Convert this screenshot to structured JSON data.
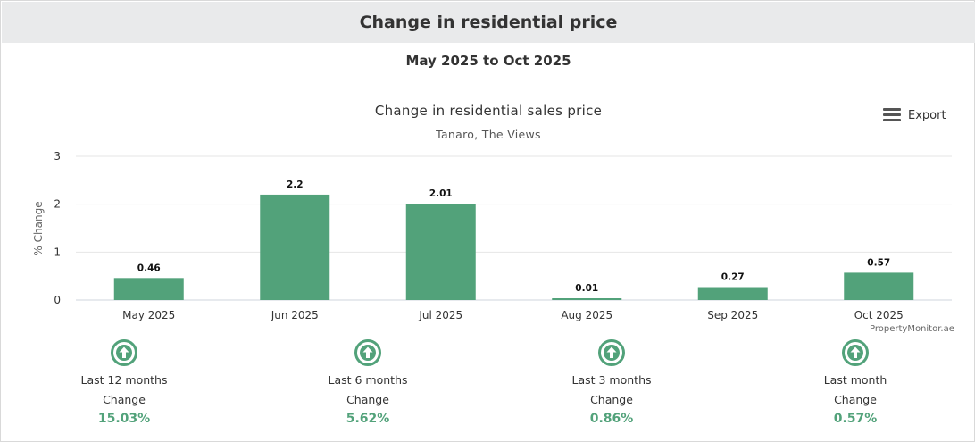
{
  "header": {
    "title": "Change in residential price"
  },
  "period": "May 2025 to Oct 2025",
  "export": {
    "label": "Export",
    "icon": "hamburger-menu-icon"
  },
  "credit": "PropertyMonitor.ae",
  "colors": {
    "bar": "#52a27a",
    "header_bg": "#e9eaeb",
    "accent": "#52a27a"
  },
  "chart_data": {
    "type": "bar",
    "title": "Change in residential sales price",
    "subtitle": "Tanaro, The Views",
    "ylabel": "% Change",
    "xlabel": "",
    "ylim": [
      0,
      3
    ],
    "yticks": [
      0,
      1,
      2,
      3
    ],
    "grid": true,
    "categories": [
      "May 2025",
      "Jun 2025",
      "Jul 2025",
      "Aug 2025",
      "Sep 2025",
      "Oct 2025"
    ],
    "values": [
      0.46,
      2.2,
      2.01,
      0.01,
      0.27,
      0.57
    ],
    "data_labels": [
      "0.46",
      "2.2",
      "2.01",
      "0.01",
      "0.27",
      "0.57"
    ]
  },
  "summary": [
    {
      "label": "Last 12 months",
      "change_label": "Change",
      "value": "15.03%",
      "icon": "arrow-up-circle-icon"
    },
    {
      "label": "Last 6 months",
      "change_label": "Change",
      "value": "5.62%",
      "icon": "arrow-up-circle-icon"
    },
    {
      "label": "Last 3 months",
      "change_label": "Change",
      "value": "0.86%",
      "icon": "arrow-up-circle-icon"
    },
    {
      "label": "Last month",
      "change_label": "Change",
      "value": "0.57%",
      "icon": "arrow-up-circle-icon"
    }
  ]
}
